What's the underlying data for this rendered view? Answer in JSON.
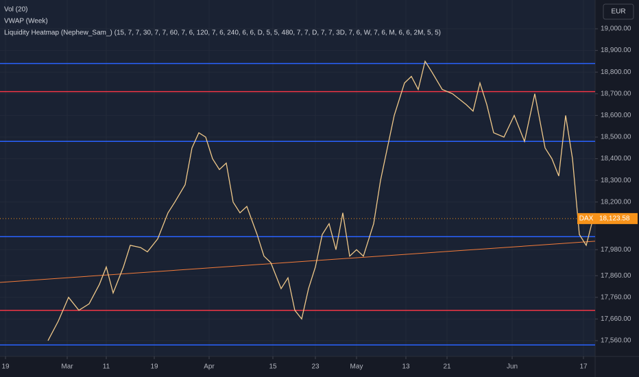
{
  "chart_data": {
    "type": "line",
    "indicators": [
      "Vol (20)",
      "VWAP (Week)",
      "Liquidity Heatmap (Nephew_Sam_) (15, 7, 7, 30, 7, 7, 60, 7, 6, 120, 7, 6, 240, 6, 6, D, 5, 5, 480, 7, 7, D, 7, 7, 3D, 7, 6, W, 7, 6, M, 6, 6, 2M, 5, 5)"
    ],
    "currency": "EUR",
    "symbol": "DAX",
    "last_price": {
      "value": 18123.58,
      "label": "18,123.58"
    },
    "x": [
      6.2,
      7.7,
      9.2,
      10.7,
      12.2,
      13.7,
      14.7,
      15.7,
      17.2,
      18.2,
      19.7,
      20.7,
      22.2,
      23.7,
      24.7,
      26.2,
      27.2,
      28.2,
      29.2,
      30.2,
      31.2,
      32.2,
      33.2,
      34.2,
      35.2,
      36.7,
      37.7,
      38.7,
      40.2,
      41.2,
      42.2,
      43.2,
      44.2,
      45.2,
      46.2,
      47.2,
      48.2,
      49.2,
      50.2,
      51.2,
      52.2,
      53.7,
      54.7,
      55.7,
      56.7,
      58.2,
      59.2,
      60.2,
      61.2,
      62.2,
      63.7,
      65.2,
      67.2,
      68.2,
      69.2,
      70.2,
      71.2,
      72.7,
      74.2,
      75.7,
      77.2,
      78.7,
      79.7,
      80.7,
      81.7,
      82.7,
      83.7,
      84.7,
      85.7
    ],
    "values": [
      17560,
      17650,
      17760,
      17700,
      17730,
      17820,
      17900,
      17780,
      17900,
      18000,
      17990,
      17970,
      18030,
      18150,
      18200,
      18280,
      18450,
      18520,
      18500,
      18400,
      18350,
      18380,
      18200,
      18150,
      18180,
      18050,
      17950,
      17920,
      17800,
      17850,
      17700,
      17660,
      17800,
      17900,
      18050,
      18100,
      17980,
      18150,
      17950,
      17980,
      17950,
      18100,
      18300,
      18450,
      18600,
      18750,
      18780,
      18720,
      18850,
      18800,
      18720,
      18700,
      18650,
      18620,
      18750,
      18650,
      18520,
      18500,
      18600,
      18480,
      18700,
      18450,
      18400,
      18320,
      18600,
      18400,
      18050,
      18000,
      18123.58
    ],
    "color": "#f0c98a",
    "levels": [
      {
        "value": 18840,
        "color": "#2962ff"
      },
      {
        "value": 18480,
        "color": "#2962ff"
      },
      {
        "value": 18040,
        "color": "#2962ff"
      },
      {
        "value": 17540,
        "color": "#2962ff"
      },
      {
        "value": 18710,
        "color": "#f23645"
      },
      {
        "value": 17700,
        "color": "#f23645"
      }
    ],
    "trend_line": {
      "x": [
        -0.8,
        86
      ],
      "values": [
        17829,
        18019
      ],
      "color": "#f57c3a"
    },
    "xlim": [
      -0.8,
      86
    ],
    "xticks": [
      {
        "value": 0,
        "label": "19"
      },
      {
        "value": 9,
        "label": "Mar"
      },
      {
        "value": 14.7,
        "label": "11"
      },
      {
        "value": 21.7,
        "label": "19"
      },
      {
        "value": 29.7,
        "label": "Apr"
      },
      {
        "value": 39,
        "label": "15"
      },
      {
        "value": 45.2,
        "label": "23"
      },
      {
        "value": 51.2,
        "label": "May"
      },
      {
        "value": 58.4,
        "label": "13"
      },
      {
        "value": 64.4,
        "label": "21"
      },
      {
        "value": 73.9,
        "label": "Jun"
      },
      {
        "value": 84.3,
        "label": "17"
      }
    ],
    "ylim": [
      17487,
      19133
    ],
    "yticks": [
      {
        "value": 19000,
        "label": "19,000.00"
      },
      {
        "value": 18900,
        "label": "18,900.00"
      },
      {
        "value": 18800,
        "label": "18,800.00"
      },
      {
        "value": 18700,
        "label": "18,700.00"
      },
      {
        "value": 18600,
        "label": "18,600.00"
      },
      {
        "value": 18500,
        "label": "18,500.00"
      },
      {
        "value": 18400,
        "label": "18,400.00"
      },
      {
        "value": 18300,
        "label": "18,300.00"
      },
      {
        "value": 18200,
        "label": "18,200.00"
      },
      {
        "value": 17980,
        "label": "17,980.00"
      },
      {
        "value": 17860,
        "label": "17,860.00"
      },
      {
        "value": 17760,
        "label": "17,760.00"
      },
      {
        "value": 17660,
        "label": "17,660.00"
      },
      {
        "value": 17560,
        "label": "17,560.00"
      }
    ],
    "grid": true
  }
}
